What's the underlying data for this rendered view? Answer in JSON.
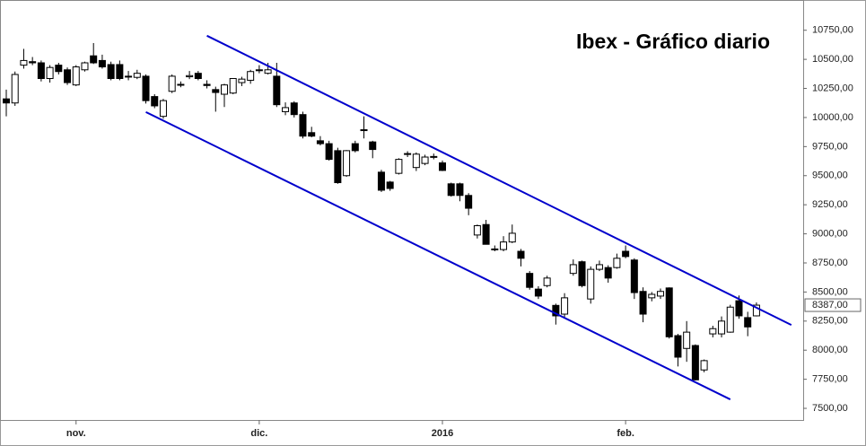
{
  "chart_data": {
    "type": "candlestick",
    "title": "Ibex - Gráfico diario",
    "categories": [
      null,
      null,
      null,
      null,
      null,
      null,
      null,
      null,
      "nov.",
      null,
      null,
      null,
      null,
      null,
      null,
      null,
      null,
      null,
      null,
      null,
      null,
      null,
      null,
      null,
      null,
      null,
      null,
      null,
      null,
      "dic.",
      null,
      null,
      null,
      null,
      null,
      null,
      null,
      null,
      null,
      null,
      null,
      null,
      null,
      null,
      null,
      null,
      null,
      null,
      null,
      null,
      "2016",
      null,
      null,
      null,
      null,
      null,
      null,
      null,
      null,
      null,
      null,
      null,
      null,
      null,
      null,
      null,
      null,
      null,
      null,
      null,
      null,
      "feb.",
      null,
      null,
      null,
      null,
      null,
      null,
      null,
      null,
      null,
      null,
      null,
      null,
      null,
      null,
      null
    ],
    "open": [
      10160,
      10125,
      10450,
      10480,
      10470,
      10335,
      10450,
      10410,
      10280,
      10410,
      10530,
      10490,
      10455,
      10455,
      10350,
      10345,
      10355,
      10180,
      10010,
      10225,
      10285,
      10350,
      10380,
      10285,
      10240,
      10200,
      10210,
      10300,
      10320,
      10405,
      10380,
      10355,
      10050,
      10125,
      10025,
      9870,
      9800,
      9775,
      9715,
      9500,
      9775,
      9895,
      9790,
      9530,
      9445,
      9520,
      9685,
      9570,
      9605,
      9665,
      9610,
      9430,
      9430,
      9330,
      8990,
      9080,
      8870,
      8865,
      8930,
      8850,
      8660,
      8525,
      8555,
      8385,
      8310,
      8660,
      8760,
      8440,
      8695,
      8710,
      8710,
      8850,
      8775,
      8505,
      8450,
      8465,
      8535,
      8125,
      8015,
      8040,
      7830,
      8140,
      8140,
      8155,
      8425,
      8280,
      8295
    ],
    "high": [
      10240,
      10395,
      10590,
      10520,
      10490,
      10450,
      10470,
      10430,
      10450,
      10480,
      10640,
      10540,
      10480,
      10490,
      10400,
      10410,
      10370,
      10200,
      10160,
      10370,
      10310,
      10400,
      10400,
      10320,
      10265,
      10290,
      10330,
      10350,
      10410,
      10450,
      10470,
      10470,
      10130,
      10140,
      10050,
      9920,
      9840,
      9800,
      9740,
      9720,
      9800,
      10010,
      9800,
      9550,
      9455,
      9650,
      9710,
      9700,
      9680,
      9690,
      9630,
      9440,
      9440,
      9350,
      9080,
      9120,
      8900,
      8980,
      9080,
      8870,
      8680,
      8550,
      8640,
      8400,
      8490,
      8780,
      8770,
      8720,
      8770,
      8730,
      8830,
      8900,
      8790,
      8540,
      8500,
      8530,
      8540,
      8140,
      8250,
      8050,
      7920,
      8210,
      8290,
      8390,
      8470,
      8330,
      8410
    ],
    "low": [
      10010,
      10100,
      10420,
      10450,
      10310,
      10300,
      10370,
      10280,
      10270,
      10395,
      10460,
      10420,
      10320,
      10320,
      10320,
      10330,
      10120,
      10080,
      9990,
      10210,
      10260,
      10330,
      10320,
      10250,
      10050,
      10090,
      10200,
      10270,
      10290,
      10380,
      10370,
      10090,
      10020,
      10000,
      9820,
      9830,
      9760,
      9630,
      9430,
      9490,
      9700,
      9820,
      9650,
      9360,
      9370,
      9510,
      9660,
      9540,
      9590,
      9640,
      9540,
      9320,
      9280,
      9160,
      8960,
      8910,
      8850,
      8850,
      8920,
      8720,
      8520,
      8440,
      8540,
      8220,
      8280,
      8640,
      8540,
      8400,
      8680,
      8580,
      8700,
      8790,
      8440,
      8240,
      8420,
      8440,
      8100,
      7860,
      7900,
      7740,
      7810,
      8110,
      8110,
      8150,
      8270,
      8120,
      8290
    ],
    "close": [
      10125,
      10370,
      10490,
      10470,
      10335,
      10430,
      10395,
      10300,
      10435,
      10470,
      10470,
      10435,
      10335,
      10335,
      10355,
      10380,
      10145,
      10100,
      10145,
      10355,
      10280,
      10360,
      10335,
      10275,
      10215,
      10280,
      10335,
      10330,
      10395,
      10410,
      10410,
      10110,
      10085,
      10025,
      9840,
      9840,
      9775,
      9640,
      9440,
      9715,
      9715,
      9890,
      9725,
      9375,
      9390,
      9640,
      9690,
      9685,
      9660,
      9660,
      9545,
      9330,
      9330,
      9220,
      9070,
      8910,
      8865,
      8930,
      9005,
      8790,
      8540,
      8465,
      8620,
      8295,
      8450,
      8735,
      8555,
      8695,
      8735,
      8620,
      8790,
      8805,
      8495,
      8310,
      8480,
      8505,
      8115,
      7940,
      8155,
      7745,
      7910,
      8185,
      8250,
      8370,
      8295,
      8200,
      8387
    ],
    "up_color": "#ffffff",
    "down_color": "#000000",
    "last_price": {
      "value": 8387,
      "label": "8387,00"
    },
    "trendlines": [
      {
        "color": "#0000cc",
        "points": [
          [
            23,
            10703
          ],
          [
            90,
            8217
          ]
        ]
      },
      {
        "color": "#0000cc",
        "points": [
          [
            16,
            10047
          ],
          [
            83,
            7577
          ]
        ]
      }
    ],
    "ylim": [
      7400,
      11010
    ],
    "yticks": [
      {
        "value": 7500,
        "label": "7500,00"
      },
      {
        "value": 7750,
        "label": "7750,00"
      },
      {
        "value": 8000,
        "label": "8000,00"
      },
      {
        "value": 8250,
        "label": "8250,00"
      },
      {
        "value": 8500,
        "label": "8500,00"
      },
      {
        "value": 8750,
        "label": "8750,00"
      },
      {
        "value": 9000,
        "label": "9000,00"
      },
      {
        "value": 9250,
        "label": "9250,00"
      },
      {
        "value": 9500,
        "label": "9500,00"
      },
      {
        "value": 9750,
        "label": "9750,00"
      },
      {
        "value": 10000,
        "label": "10000,00"
      },
      {
        "value": 10250,
        "label": "10250,00"
      },
      {
        "value": 10500,
        "label": "10500,00"
      },
      {
        "value": 10750,
        "label": "10750,00"
      }
    ]
  }
}
